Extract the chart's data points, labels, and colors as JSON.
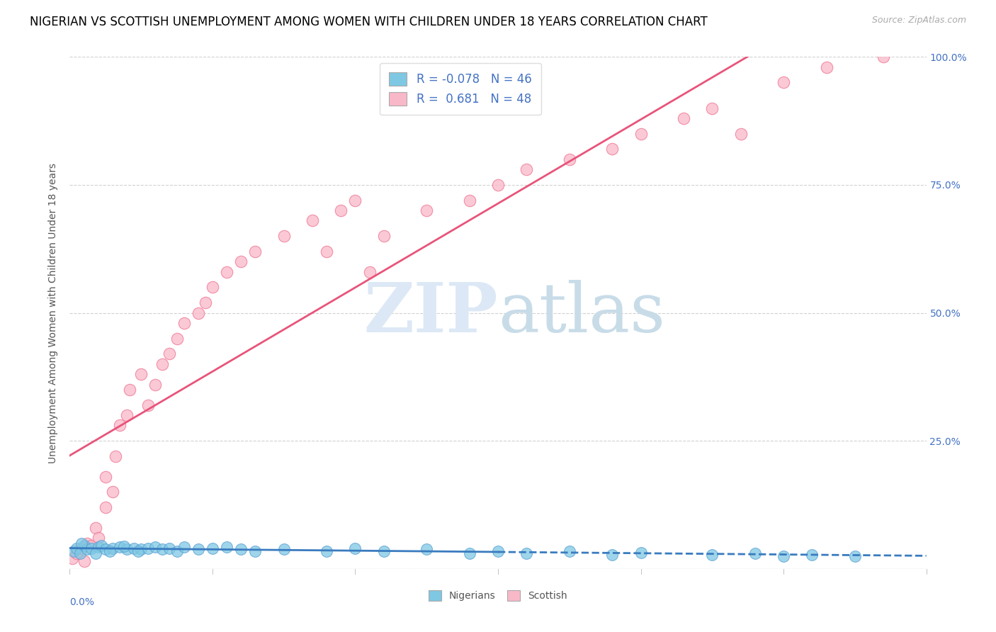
{
  "title": "NIGERIAN VS SCOTTISH UNEMPLOYMENT AMONG WOMEN WITH CHILDREN UNDER 18 YEARS CORRELATION CHART",
  "source": "Source: ZipAtlas.com",
  "ylabel": "Unemployment Among Women with Children Under 18 years",
  "xlim": [
    0.0,
    0.6
  ],
  "ylim": [
    0.0,
    1.0
  ],
  "yticks": [
    0.0,
    0.25,
    0.5,
    0.75,
    1.0
  ],
  "ytick_labels_right": [
    "",
    "25.0%",
    "50.0%",
    "75.0%",
    "100.0%"
  ],
  "nigerian_R": -0.078,
  "nigerian_N": 46,
  "scottish_R": 0.681,
  "scottish_N": 48,
  "nigerian_color": "#7ec8e3",
  "scottish_color": "#f9b8c8",
  "nigerian_edge_color": "#5a9fd4",
  "scottish_edge_color": "#f07090",
  "nigerian_line_color": "#3a7bbf",
  "scottish_line_color": "#e8547a",
  "tick_color": "#4472C4",
  "watermark_color": "#dce8f5",
  "nigerian_x": [
    0.003,
    0.005,
    0.007,
    0.01,
    0.012,
    0.008,
    0.015,
    0.02,
    0.018,
    0.022,
    0.025,
    0.03,
    0.028,
    0.035,
    0.04,
    0.038,
    0.045,
    0.05,
    0.048,
    0.055,
    0.06,
    0.065,
    0.07,
    0.075,
    0.08,
    0.09,
    0.1,
    0.11,
    0.12,
    0.13,
    0.15,
    0.18,
    0.2,
    0.22,
    0.25,
    0.28,
    0.3,
    0.32,
    0.35,
    0.38,
    0.4,
    0.45,
    0.48,
    0.5,
    0.52,
    0.55
  ],
  "nigerian_y": [
    0.035,
    0.04,
    0.03,
    0.045,
    0.038,
    0.05,
    0.04,
    0.042,
    0.03,
    0.045,
    0.038,
    0.04,
    0.035,
    0.042,
    0.038,
    0.044,
    0.04,
    0.038,
    0.035,
    0.04,
    0.042,
    0.038,
    0.04,
    0.035,
    0.042,
    0.038,
    0.04,
    0.042,
    0.038,
    0.035,
    0.038,
    0.035,
    0.04,
    0.035,
    0.038,
    0.03,
    0.035,
    0.03,
    0.035,
    0.028,
    0.032,
    0.028,
    0.03,
    0.025,
    0.028,
    0.025
  ],
  "scottish_x": [
    0.002,
    0.005,
    0.01,
    0.008,
    0.012,
    0.015,
    0.018,
    0.02,
    0.025,
    0.025,
    0.03,
    0.032,
    0.035,
    0.04,
    0.042,
    0.05,
    0.055,
    0.06,
    0.065,
    0.07,
    0.075,
    0.08,
    0.09,
    0.095,
    0.1,
    0.11,
    0.12,
    0.13,
    0.15,
    0.17,
    0.18,
    0.19,
    0.2,
    0.21,
    0.22,
    0.25,
    0.28,
    0.3,
    0.32,
    0.35,
    0.38,
    0.4,
    0.43,
    0.45,
    0.47,
    0.5,
    0.53,
    0.57
  ],
  "scottish_y": [
    0.02,
    0.03,
    0.015,
    0.04,
    0.05,
    0.045,
    0.08,
    0.06,
    0.12,
    0.18,
    0.15,
    0.22,
    0.28,
    0.3,
    0.35,
    0.38,
    0.32,
    0.36,
    0.4,
    0.42,
    0.45,
    0.48,
    0.5,
    0.52,
    0.55,
    0.58,
    0.6,
    0.62,
    0.65,
    0.68,
    0.62,
    0.7,
    0.72,
    0.58,
    0.65,
    0.7,
    0.72,
    0.75,
    0.78,
    0.8,
    0.82,
    0.85,
    0.88,
    0.9,
    0.85,
    0.95,
    0.98,
    1.0
  ],
  "title_fontsize": 12,
  "axis_label_fontsize": 10,
  "tick_fontsize": 10,
  "legend_fontsize": 12
}
